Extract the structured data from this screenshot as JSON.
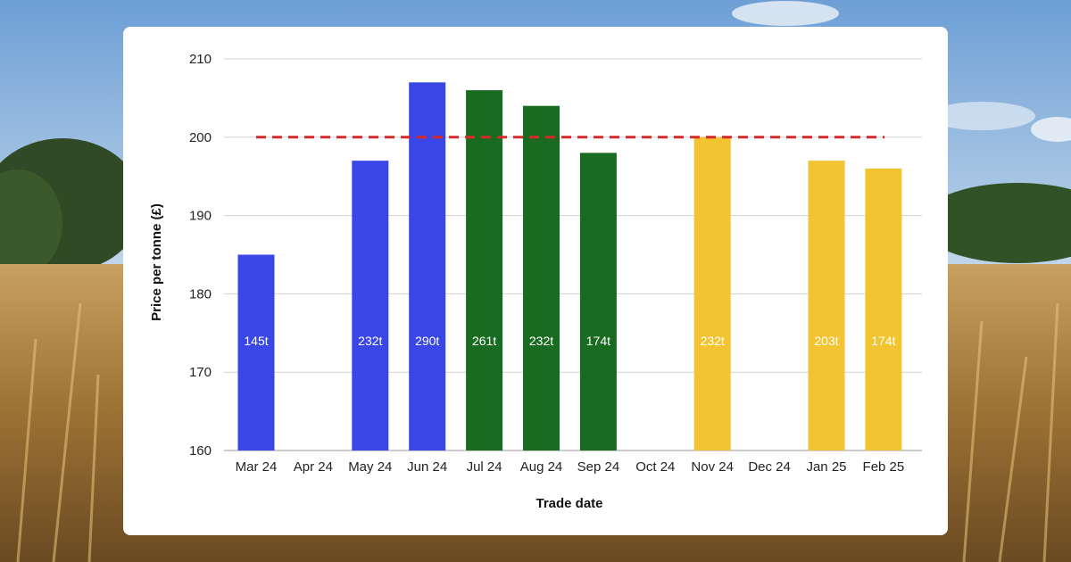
{
  "chart_data": {
    "type": "bar",
    "xlabel": "Trade date",
    "ylabel": "Price per tonne (£)",
    "ylim": [
      160,
      210
    ],
    "yticks": [
      160,
      170,
      180,
      190,
      200,
      210
    ],
    "grid": true,
    "categories": [
      "Mar 24",
      "Apr 24",
      "May 24",
      "Jun 24",
      "Jul 24",
      "Aug 24",
      "Sep 24",
      "Oct 24",
      "Nov 24",
      "Dec 24",
      "Jan 25",
      "Feb 25"
    ],
    "values": [
      185,
      null,
      197,
      207,
      206,
      204,
      198,
      null,
      200,
      null,
      197,
      196
    ],
    "bar_labels": [
      "145t",
      "",
      "232t",
      "290t",
      "261t",
      "232t",
      "174t",
      "",
      "232t",
      "",
      "203t",
      "174t"
    ],
    "bar_colors": [
      "#3a46e6",
      "",
      "#3a46e6",
      "#3a46e6",
      "#1a6b22",
      "#1a6b22",
      "#1a6b22",
      "",
      "#f2c431",
      "",
      "#f2c431",
      "#f2c431"
    ],
    "reference_line": {
      "value": 200,
      "color": "#d42a2a",
      "style": "dashed"
    }
  },
  "colors": {
    "card_background": "#ffffff",
    "gridline": "#d0d0d0"
  }
}
